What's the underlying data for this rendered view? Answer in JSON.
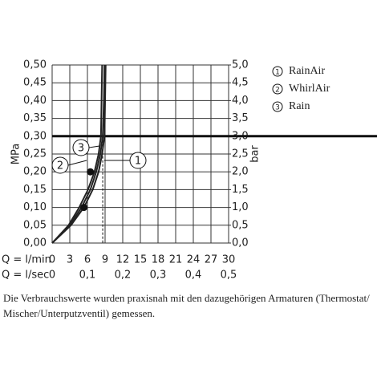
{
  "chart_data": {
    "type": "line",
    "ylabel": "MPa",
    "y2label": "bar",
    "xlabel": "Q = l/min",
    "x2label": "Q = l/sec",
    "xlim": [
      0,
      30
    ],
    "xticks": [
      0,
      3,
      6,
      9,
      12,
      15,
      18,
      21,
      24,
      27,
      30
    ],
    "x2lim": [
      0,
      0.5
    ],
    "x2ticks": [
      {
        "value": 0,
        "label": "0"
      },
      {
        "value": 0.1,
        "label": "0,1"
      },
      {
        "value": 0.2,
        "label": "0,2"
      },
      {
        "value": 0.3,
        "label": "0,3"
      },
      {
        "value": 0.4,
        "label": "0,4"
      },
      {
        "value": 0.5,
        "label": "0,5"
      }
    ],
    "ylim": [
      0,
      0.5
    ],
    "yticks": [
      {
        "value": 0,
        "label": "0,00"
      },
      {
        "value": 0.05,
        "label": "0,05"
      },
      {
        "value": 0.1,
        "label": "0,10"
      },
      {
        "value": 0.15,
        "label": "0,15"
      },
      {
        "value": 0.2,
        "label": "0,20"
      },
      {
        "value": 0.25,
        "label": "0,25"
      },
      {
        "value": 0.3,
        "label": "0,30"
      },
      {
        "value": 0.35,
        "label": "0,35"
      },
      {
        "value": 0.4,
        "label": "0,40"
      },
      {
        "value": 0.45,
        "label": "0,45"
      },
      {
        "value": 0.5,
        "label": "0,50"
      }
    ],
    "y2lim": [
      0,
      5
    ],
    "y2ticks": [
      {
        "value": 0,
        "label": "0,0"
      },
      {
        "value": 0.5,
        "label": "0,5"
      },
      {
        "value": 1,
        "label": "1,0"
      },
      {
        "value": 1.5,
        "label": "1,5"
      },
      {
        "value": 2,
        "label": "2,0"
      },
      {
        "value": 2.5,
        "label": "2,5"
      },
      {
        "value": 3,
        "label": "3,0"
      },
      {
        "value": 3.5,
        "label": "3,5"
      },
      {
        "value": 4,
        "label": "4,0"
      },
      {
        "value": 4.5,
        "label": "4,5"
      },
      {
        "value": 5,
        "label": "5,0"
      }
    ],
    "grid": true,
    "hline": 0.3,
    "vline": 8.6,
    "series": [
      {
        "name": "RainAir",
        "label": "1",
        "color": "#222",
        "x": [
          0,
          3,
          5,
          6.5,
          7.5,
          8.2,
          8.6,
          8.8,
          8.9
        ],
        "values": [
          0,
          0.05,
          0.1,
          0.15,
          0.2,
          0.25,
          0.3,
          0.4,
          0.5
        ]
      },
      {
        "name": "WhirlAir",
        "label": "2",
        "color": "#222",
        "x": [
          0,
          2.8,
          4.6,
          6.1,
          7.2,
          7.9,
          8.3,
          8.4,
          8.5
        ],
        "values": [
          0,
          0.05,
          0.1,
          0.15,
          0.2,
          0.25,
          0.3,
          0.4,
          0.5
        ]
      },
      {
        "name": "Rain",
        "label": "3",
        "color": "#222",
        "x": [
          0,
          3.2,
          5.4,
          6.9,
          7.9,
          8.5,
          8.9,
          9.0,
          9.1
        ],
        "values": [
          0,
          0.05,
          0.1,
          0.15,
          0.2,
          0.25,
          0.3,
          0.4,
          0.5
        ]
      }
    ],
    "points": {
      "x": [
        5.4,
        6.5
      ],
      "values": [
        0.1,
        0.2
      ]
    },
    "note": "Die Verbrauchswerte wurden praxisnah mit den dazugehörigen Armaturen (Thermostat/ Mischer/Unterputzventil) gemessen."
  }
}
